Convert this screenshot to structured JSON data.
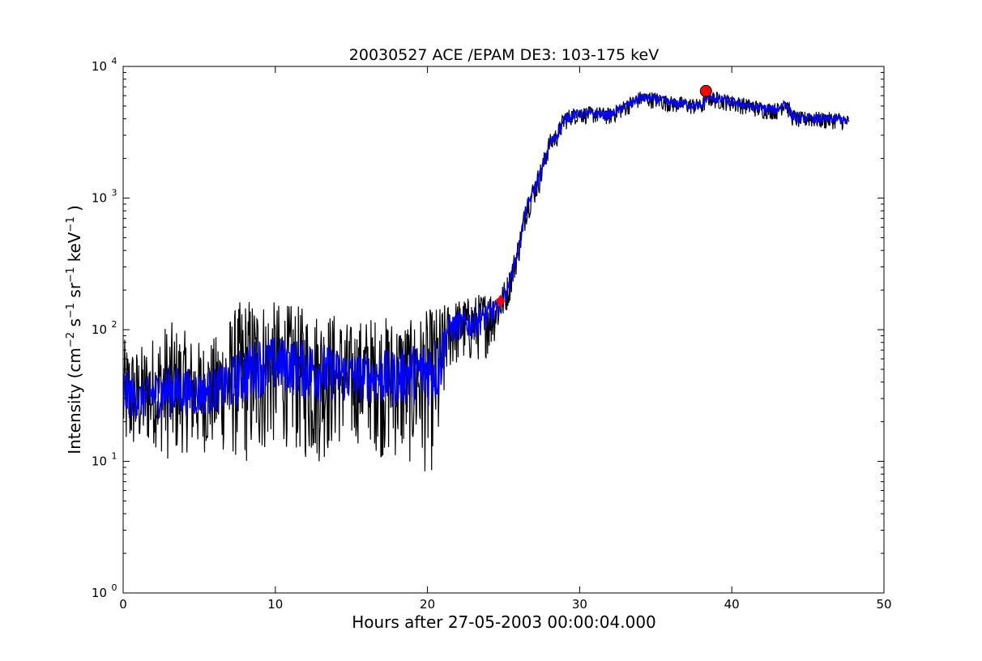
{
  "chart_data": {
    "type": "line",
    "title": "20030527 ACE /EPAM DE3: 103-175 keV",
    "xlabel": "Hours after 27-05-2003 00:00:04.000",
    "ylabel": {
      "prefix": "Intensity (cm",
      "exp1": "−2",
      "mid1": " s",
      "exp2": "−1",
      "mid2": " sr",
      "exp3": "−1",
      "mid3": " keV",
      "exp4": "−1",
      "suffix": " )"
    },
    "xlim": [
      0,
      50
    ],
    "ylim": [
      1,
      10000
    ],
    "yscale": "log",
    "grid": false,
    "x_ticks": [
      {
        "value": 0,
        "label": "0"
      },
      {
        "value": 10,
        "label": "10"
      },
      {
        "value": 20,
        "label": "20"
      },
      {
        "value": 30,
        "label": "30"
      },
      {
        "value": 40,
        "label": "40"
      },
      {
        "value": 50,
        "label": "50"
      }
    ],
    "y_ticks": [
      {
        "value": 1,
        "base": "10",
        "exp": "0"
      },
      {
        "value": 10,
        "base": "10",
        "exp": "1"
      },
      {
        "value": 100,
        "base": "10",
        "exp": "2"
      },
      {
        "value": 1000,
        "base": "10",
        "exp": "3"
      },
      {
        "value": 10000,
        "base": "10",
        "exp": "4"
      }
    ],
    "series": [
      {
        "role": "raw-intensity",
        "color": "#000000",
        "x": [
          0,
          1,
          2,
          3,
          4,
          5,
          6,
          7,
          8,
          9,
          10,
          11,
          12,
          13,
          14,
          15,
          16,
          17,
          18,
          19,
          20,
          20.8,
          21.3,
          22,
          23,
          24,
          24.7,
          25.3,
          26,
          26.5,
          27,
          27.5,
          28,
          28.5,
          29,
          29.5,
          30,
          31,
          32,
          33,
          34,
          35,
          36,
          37,
          38,
          38.4,
          39,
          40,
          41,
          42,
          43,
          43.5,
          44,
          44.5,
          45,
          46,
          47,
          47.7
        ],
        "y": [
          35,
          30,
          33,
          36,
          35,
          34,
          36,
          40,
          48,
          55,
          57,
          55,
          52,
          50,
          48,
          45,
          45,
          45,
          45,
          48,
          50,
          55,
          100,
          110,
          115,
          130,
          150,
          210,
          420,
          850,
          1150,
          1600,
          2600,
          3000,
          4000,
          4300,
          4400,
          4400,
          4300,
          5000,
          5800,
          5700,
          5300,
          5200,
          5000,
          5900,
          5700,
          5400,
          5100,
          4800,
          4700,
          5400,
          4200,
          4000,
          4100,
          4000,
          4000,
          3800
        ],
        "spread_lo": [
          0.35,
          0.25,
          0.25,
          0.35,
          0.3,
          0.3,
          0.3,
          0.35,
          0.45,
          0.45,
          0.4,
          0.4,
          0.45,
          0.45,
          0.35,
          0.35,
          0.3,
          0.4,
          0.4,
          0.45,
          0.5,
          0.5,
          0.2,
          0.2,
          0.2,
          0.2,
          0.12,
          0.1,
          0.08,
          0.08,
          0.08,
          0.08,
          0.06,
          0.06,
          0.06,
          0.05,
          0.05,
          0.05,
          0.05,
          0.05,
          0.05,
          0.05,
          0.05,
          0.05,
          0.05,
          0.05,
          0.05,
          0.05,
          0.05,
          0.05,
          0.05,
          0.05,
          0.05,
          0.05,
          0.05,
          0.05,
          0.05,
          0.05
        ],
        "spread_hi": [
          0.3,
          0.3,
          0.35,
          0.4,
          0.35,
          0.3,
          0.3,
          0.4,
          0.45,
          0.4,
          0.35,
          0.35,
          0.35,
          0.35,
          0.35,
          0.3,
          0.35,
          0.35,
          0.35,
          0.3,
          0.35,
          0.35,
          0.15,
          0.15,
          0.15,
          0.15,
          0.1,
          0.08,
          0.07,
          0.07,
          0.07,
          0.07,
          0.05,
          0.05,
          0.05,
          0.04,
          0.04,
          0.04,
          0.04,
          0.04,
          0.04,
          0.04,
          0.04,
          0.04,
          0.04,
          0.04,
          0.04,
          0.04,
          0.04,
          0.04,
          0.04,
          0.04,
          0.04,
          0.04,
          0.04,
          0.04,
          0.04,
          0.04
        ]
      },
      {
        "role": "smoothed-intensity",
        "color": "#0000ff",
        "x": [
          0,
          1,
          2,
          3,
          4,
          5,
          6,
          7,
          8,
          9,
          10,
          11,
          12,
          13,
          14,
          15,
          16,
          17,
          18,
          19,
          20,
          20.8,
          21.3,
          22,
          23,
          24,
          24.7,
          25.3,
          26,
          26.5,
          27,
          27.5,
          28,
          28.5,
          29,
          29.5,
          30,
          31,
          32,
          33,
          34,
          35,
          36,
          37,
          38,
          38.4,
          39,
          40,
          41,
          42,
          43,
          43.5,
          44,
          44.5,
          45,
          46,
          47,
          47.7
        ],
        "y": [
          35,
          30,
          33,
          36,
          35,
          34,
          36,
          40,
          48,
          55,
          57,
          55,
          52,
          50,
          48,
          45,
          45,
          45,
          45,
          48,
          50,
          55,
          100,
          110,
          115,
          130,
          150,
          210,
          420,
          850,
          1150,
          1600,
          2600,
          3000,
          4000,
          4300,
          4400,
          4400,
          4300,
          5000,
          5800,
          5700,
          5300,
          5200,
          5000,
          5900,
          5700,
          5400,
          5100,
          4800,
          4700,
          5400,
          4200,
          4000,
          4100,
          4000,
          4000,
          3800
        ],
        "spread_lo": [
          0.14,
          0.1,
          0.12,
          0.14,
          0.13,
          0.12,
          0.12,
          0.14,
          0.16,
          0.16,
          0.15,
          0.15,
          0.16,
          0.16,
          0.14,
          0.14,
          0.13,
          0.15,
          0.15,
          0.16,
          0.18,
          0.18,
          0.08,
          0.08,
          0.08,
          0.08,
          0.05,
          0.04,
          0.035,
          0.035,
          0.035,
          0.035,
          0.03,
          0.03,
          0.03,
          0.025,
          0.025,
          0.025,
          0.025,
          0.025,
          0.025,
          0.025,
          0.025,
          0.025,
          0.025,
          0.025,
          0.025,
          0.025,
          0.025,
          0.025,
          0.025,
          0.025,
          0.025,
          0.025,
          0.025,
          0.025,
          0.025,
          0.025
        ],
        "spread_hi": [
          0.14,
          0.1,
          0.12,
          0.14,
          0.13,
          0.12,
          0.12,
          0.14,
          0.16,
          0.16,
          0.15,
          0.15,
          0.16,
          0.16,
          0.14,
          0.14,
          0.13,
          0.15,
          0.15,
          0.16,
          0.18,
          0.18,
          0.08,
          0.08,
          0.08,
          0.08,
          0.05,
          0.04,
          0.035,
          0.035,
          0.035,
          0.035,
          0.03,
          0.03,
          0.03,
          0.025,
          0.025,
          0.025,
          0.025,
          0.025,
          0.025,
          0.025,
          0.025,
          0.025,
          0.025,
          0.025,
          0.025,
          0.025,
          0.025,
          0.025,
          0.025,
          0.025,
          0.025,
          0.025,
          0.025,
          0.025,
          0.025,
          0.025
        ]
      }
    ],
    "markers": [
      {
        "kind": "onset-diamond",
        "x": 24.8,
        "y": 165,
        "color": "#ff0000"
      },
      {
        "kind": "peak-circle",
        "x": 38.3,
        "y": 6500,
        "color": "#ff0000"
      }
    ]
  }
}
